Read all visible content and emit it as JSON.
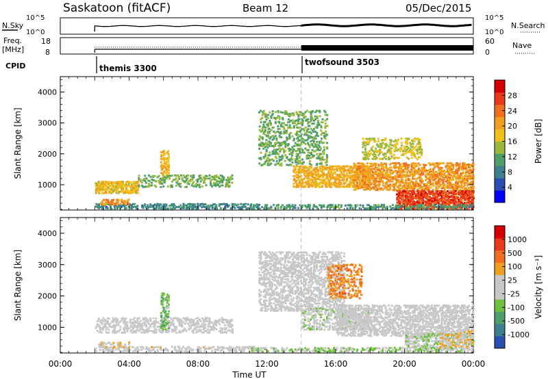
{
  "header": {
    "station": "Saskatoon (fitACF)",
    "beam": "Beam 12",
    "date": "05/Dec/2015"
  },
  "status_panels": {
    "nsky_label": "N.Sky",
    "nsky_ticks": [
      "10^5",
      "10^0"
    ],
    "nsearch_label": "N.Search",
    "nsearch_ticks": [
      "10^5",
      "10^0"
    ],
    "freq_label": "Freq.",
    "freq_unit": "[MHz]",
    "freq_ticks": [
      "18",
      "8"
    ],
    "nave_label": "Nave",
    "nave_ticks": [
      "60",
      "0"
    ],
    "cpid_label": "CPID",
    "cpid_modes": [
      {
        "name": "themis 3300",
        "start_hour": 2.0,
        "end_hour": 14.0
      },
      {
        "name": "twofsound 3503",
        "start_hour": 14.0,
        "end_hour": 24.0
      }
    ]
  },
  "chart_data": [
    {
      "type": "heatmap",
      "title": "",
      "xlabel": "Time UT",
      "ylabel": "Slant Range [km]",
      "x_tick_labels": [
        "00:00",
        "04:00",
        "08:00",
        "12:00",
        "16:00",
        "20:00",
        "00:00"
      ],
      "x_ticks_hours": [
        0,
        4,
        8,
        12,
        16,
        20,
        24
      ],
      "xlim_hours": [
        0,
        24
      ],
      "ylim": [
        180,
        4500
      ],
      "y_ticks": [
        1000,
        2000,
        3000,
        4000
      ],
      "colorbar": {
        "label": "Power [dB]",
        "tick_labels": [
          "28",
          "24",
          "20",
          "16",
          "12",
          "8",
          "4"
        ],
        "colors": [
          "#0000ff",
          "#2a4fb0",
          "#3f7f8f",
          "#4f9f6a",
          "#9ab83c",
          "#f0c020",
          "#f0a020",
          "#f07020",
          "#e83a1a",
          "#d40000"
        ],
        "range": [
          0,
          32
        ]
      },
      "scatter_regions": [
        {
          "t0": 2.0,
          "t1": 11.5,
          "r0": 200,
          "r1": 380,
          "value": 8,
          "density": 0.55
        },
        {
          "t0": 2.0,
          "t1": 4.5,
          "r0": 700,
          "r1": 1100,
          "value": 18,
          "density": 0.75
        },
        {
          "t0": 4.5,
          "t1": 10.0,
          "r0": 900,
          "r1": 1300,
          "value": 12,
          "density": 0.35
        },
        {
          "t0": 2.2,
          "t1": 4.0,
          "r0": 330,
          "r1": 520,
          "value": 22,
          "density": 0.6
        },
        {
          "t0": 5.8,
          "t1": 6.3,
          "r0": 1300,
          "r1": 2100,
          "value": 20,
          "density": 0.5
        },
        {
          "t0": 11.5,
          "t1": 15.5,
          "r0": 1600,
          "r1": 3400,
          "value": 12,
          "density": 0.3
        },
        {
          "t0": 13.5,
          "t1": 18.0,
          "r0": 900,
          "r1": 1600,
          "value": 20,
          "density": 0.6
        },
        {
          "t0": 17.0,
          "t1": 24.0,
          "r0": 800,
          "r1": 1700,
          "value": 22,
          "density": 0.55
        },
        {
          "t0": 19.5,
          "t1": 24.0,
          "r0": 200,
          "r1": 800,
          "value": 28,
          "density": 0.75
        },
        {
          "t0": 17.5,
          "t1": 21.0,
          "r0": 1800,
          "r1": 2500,
          "value": 16,
          "density": 0.35
        },
        {
          "t0": 11.0,
          "t1": 24.0,
          "r0": 200,
          "r1": 350,
          "value": 10,
          "density": 0.45
        }
      ]
    },
    {
      "type": "heatmap",
      "title": "",
      "xlabel": "Time UT",
      "ylabel": "Slant Range [km]",
      "x_tick_labels": [
        "00:00",
        "04:00",
        "08:00",
        "12:00",
        "16:00",
        "20:00",
        "00:00"
      ],
      "x_ticks_hours": [
        0,
        4,
        8,
        12,
        16,
        20,
        24
      ],
      "xlim_hours": [
        0,
        24
      ],
      "ylim": [
        180,
        4500
      ],
      "y_ticks": [
        1000,
        2000,
        3000,
        4000
      ],
      "colorbar": {
        "label": "Velocity [m s⁻¹]",
        "tick_labels": [
          "1000",
          "500",
          "100",
          "25",
          "-25",
          "-100",
          "-500",
          "-1000"
        ],
        "colors": [
          "#2a4fb0",
          "#3f7f8f",
          "#4f9f6a",
          "#70c040",
          "#c8c8c8",
          "#c8c8c8",
          "#f0a020",
          "#f07020",
          "#e83a1a",
          "#d40000"
        ],
        "range": [
          -1200,
          1200
        ]
      },
      "scatter_regions": [
        {
          "t0": 2.0,
          "t1": 11.5,
          "r0": 200,
          "r1": 380,
          "value": 60,
          "density": 0.45
        },
        {
          "t0": 2.0,
          "t1": 10.0,
          "r0": 800,
          "r1": 1300,
          "value": 0,
          "density": 0.45
        },
        {
          "t0": 2.2,
          "t1": 4.0,
          "r0": 330,
          "r1": 520,
          "value": 150,
          "density": 0.5
        },
        {
          "t0": 5.8,
          "t1": 6.3,
          "r0": 900,
          "r1": 2100,
          "value": -400,
          "density": 0.5
        },
        {
          "t0": 11.5,
          "t1": 16.5,
          "r0": 1500,
          "r1": 3400,
          "value": 0,
          "density": 0.45
        },
        {
          "t0": 14.0,
          "t1": 18.0,
          "r0": 900,
          "r1": 1600,
          "value": -150,
          "density": 0.45
        },
        {
          "t0": 16.0,
          "t1": 24.0,
          "r0": 700,
          "r1": 1700,
          "value": 0,
          "density": 0.55
        },
        {
          "t0": 20.0,
          "t1": 24.0,
          "r0": 200,
          "r1": 800,
          "value": -200,
          "density": 0.5
        },
        {
          "t0": 22.0,
          "t1": 24.0,
          "r0": 300,
          "r1": 900,
          "value": 200,
          "density": 0.4
        },
        {
          "t0": 15.5,
          "t1": 17.5,
          "r0": 1900,
          "r1": 3000,
          "value": 600,
          "density": 0.35
        },
        {
          "t0": 11.0,
          "t1": 21.0,
          "r0": 200,
          "r1": 350,
          "value": -250,
          "density": 0.45
        }
      ]
    }
  ]
}
